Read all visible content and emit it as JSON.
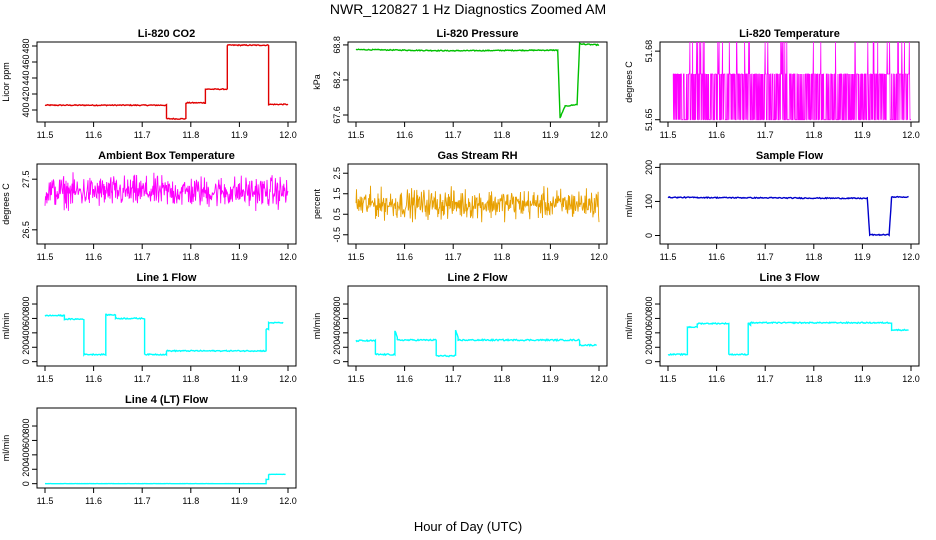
{
  "figure_title": "NWR_120827  1 Hz Diagnostics Zoomed AM",
  "x_axis_label": "Hour of Day (UTC)",
  "chart_data": [
    {
      "type": "line",
      "title": "Li-820 CO2",
      "ylabel": "Licor ppm",
      "color": "#e00000",
      "xlim": [
        11.5,
        12.0
      ],
      "ylim": [
        385,
        485
      ],
      "xticks": [
        "11.5",
        "11.6",
        "11.7",
        "11.8",
        "11.9",
        "12.0"
      ],
      "yticks": [
        400,
        420,
        440,
        460,
        480
      ],
      "noise": 0.6,
      "x": [
        11.5,
        11.75,
        11.75,
        11.79,
        11.79,
        11.83,
        11.83,
        11.875,
        11.875,
        11.96,
        11.96,
        12.0
      ],
      "y": [
        406,
        406,
        389,
        389,
        409,
        409,
        426,
        426,
        481,
        481,
        407,
        407
      ]
    },
    {
      "type": "line",
      "title": "Li-820 Pressure",
      "ylabel": "kPa",
      "color": "#00c000",
      "xlim": [
        11.5,
        12.0
      ],
      "ylim": [
        67.48,
        68.85
      ],
      "xticks": [
        "11.5",
        "11.6",
        "11.7",
        "11.8",
        "11.9",
        "12.0"
      ],
      "yticks": [
        67.6,
        68.2,
        68.8
      ],
      "noise": 0.008,
      "x": [
        11.5,
        11.7,
        11.9,
        11.915,
        11.92,
        11.93,
        11.955,
        11.96,
        11.97,
        12.0
      ],
      "y": [
        68.72,
        68.7,
        68.71,
        68.71,
        67.55,
        67.75,
        67.78,
        68.82,
        68.81,
        68.8
      ]
    },
    {
      "type": "spikes",
      "title": "Li-820 Temperature",
      "ylabel": "degrees C",
      "color": "#ff00ff",
      "xlim": [
        11.5,
        12.0
      ],
      "ylim": [
        51.649,
        51.684
      ],
      "xticks": [
        "11.5",
        "11.6",
        "11.7",
        "11.8",
        "11.9",
        "12.0"
      ],
      "yticks": [
        51.65,
        51.68
      ],
      "low": 51.65,
      "high": 51.67,
      "peak": 51.684,
      "x_start": 11.51
    },
    {
      "type": "noise",
      "title": "Ambient Box Temperature",
      "ylabel": "degrees C",
      "color": "#ff00ff",
      "xlim": [
        11.5,
        12.0
      ],
      "ylim": [
        26.22,
        27.8
      ],
      "xticks": [
        "11.5",
        "11.6",
        "11.7",
        "11.8",
        "11.9",
        "12.0"
      ],
      "yticks": [
        26.5,
        27.5
      ],
      "center": 27.25,
      "amp": 0.45
    },
    {
      "type": "noise",
      "title": "Gas Stream RH",
      "ylabel": "percent",
      "color": "#e8a000",
      "xlim": [
        11.5,
        12.0
      ],
      "ylim": [
        -0.95,
        2.95
      ],
      "xticks": [
        "11.5",
        "11.6",
        "11.7",
        "11.8",
        "11.9",
        "12.0"
      ],
      "yticks": [
        -0.5,
        0.5,
        1.5,
        2.5
      ],
      "center": 1.0,
      "amp": 1.05
    },
    {
      "type": "line",
      "title": "Sample Flow",
      "ylabel": "ml/min",
      "color": "#0000cc",
      "xlim": [
        11.5,
        12.0
      ],
      "ylim": [
        -25,
        210
      ],
      "xticks": [
        "11.5",
        "11.6",
        "11.7",
        "11.8",
        "11.9",
        "12.0"
      ],
      "yticks": [
        0,
        100,
        200
      ],
      "noise": 1.5,
      "x": [
        11.5,
        11.91,
        11.915,
        11.955,
        11.96,
        11.995
      ],
      "y": [
        112,
        109,
        2,
        2,
        113,
        113
      ]
    },
    {
      "type": "line",
      "title": "Line 1 Flow",
      "ylabel": "ml/min",
      "color": "#00ffff",
      "xlim": [
        11.5,
        12.0
      ],
      "ylim": [
        -60,
        1050
      ],
      "xticks": [
        "11.5",
        "11.6",
        "11.7",
        "11.8",
        "11.9",
        "12.0"
      ],
      "yticks": [
        0,
        200,
        400,
        600,
        800
      ],
      "noise": 8,
      "x": [
        11.5,
        11.54,
        11.54,
        11.58,
        11.58,
        11.625,
        11.625,
        11.645,
        11.645,
        11.705,
        11.705,
        11.75,
        11.75,
        11.955,
        11.955,
        11.96,
        11.96,
        11.99
      ],
      "y": [
        640,
        640,
        590,
        590,
        100,
        100,
        650,
        650,
        600,
        600,
        100,
        100,
        150,
        150,
        450,
        450,
        540,
        540
      ]
    },
    {
      "type": "line",
      "title": "Line 2 Flow",
      "ylabel": "ml/min",
      "color": "#00ffff",
      "xlim": [
        11.5,
        12.0
      ],
      "ylim": [
        -60,
        1050
      ],
      "xticks": [
        "11.5",
        "11.6",
        "11.7",
        "11.8",
        "11.9",
        "12.0"
      ],
      "yticks": [
        0,
        200,
        400,
        600,
        800
      ],
      "noise": 10,
      "x": [
        11.5,
        11.54,
        11.54,
        11.58,
        11.58,
        11.585,
        11.585,
        11.665,
        11.665,
        11.705,
        11.705,
        11.71,
        11.71,
        11.96,
        11.96,
        11.995
      ],
      "y": [
        290,
        290,
        100,
        100,
        430,
        330,
        300,
        300,
        80,
        80,
        430,
        330,
        300,
        300,
        230,
        230
      ]
    },
    {
      "type": "line",
      "title": "Line 3 Flow",
      "ylabel": "ml/min",
      "color": "#00ffff",
      "xlim": [
        11.5,
        12.0
      ],
      "ylim": [
        -60,
        1050
      ],
      "xticks": [
        "11.5",
        "11.6",
        "11.7",
        "11.8",
        "11.9",
        "12.0"
      ],
      "yticks": [
        0,
        200,
        400,
        600,
        800
      ],
      "noise": 8,
      "x": [
        11.5,
        11.54,
        11.54,
        11.56,
        11.56,
        11.625,
        11.625,
        11.665,
        11.665,
        11.67,
        11.67,
        11.96,
        11.96,
        11.995
      ],
      "y": [
        100,
        100,
        480,
        480,
        530,
        530,
        100,
        100,
        540,
        510,
        540,
        540,
        440,
        440
      ]
    },
    {
      "type": "line",
      "title": "Line 4 (LT) Flow",
      "ylabel": "ml/min",
      "color": "#00ffff",
      "xlim": [
        11.5,
        12.0
      ],
      "ylim": [
        -60,
        1050
      ],
      "xticks": [
        "11.5",
        "11.6",
        "11.7",
        "11.8",
        "11.9",
        "12.0"
      ],
      "yticks": [
        0,
        200,
        400,
        600,
        800
      ],
      "noise": 1,
      "x": [
        11.5,
        11.955,
        11.955,
        11.96,
        11.96,
        11.995
      ],
      "y": [
        0,
        0,
        60,
        60,
        130,
        130
      ]
    }
  ]
}
